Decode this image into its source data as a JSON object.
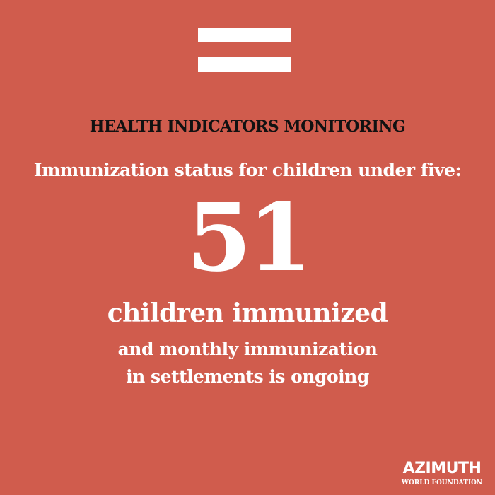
{
  "header": {
    "title": "HEALTH INDICATORS MONITORING",
    "subtitle": "Immunization status for children under five:"
  },
  "stat": {
    "value": 51,
    "label": "children immunized",
    "lines": [
      "and monthly immunization",
      "in settlements is ongoing"
    ]
  },
  "logo": {
    "name": "AZIMUTH",
    "tagline": "WORLD FOUNDATION"
  }
}
